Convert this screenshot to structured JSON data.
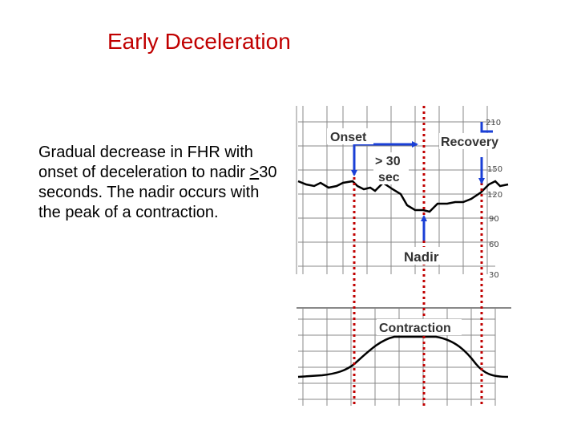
{
  "slide": {
    "title": "Early Deceleration",
    "description": {
      "before": "Gradual decrease in FHR with onset of deceleration to nadir ",
      "symbol": ">",
      "after": "30 seconds. The nadir occurs with the peak of a contraction."
    }
  },
  "strip": {
    "labels": {
      "onset": "Onset",
      "recovery": "Recovery",
      "duration_line1": "> 30",
      "duration_line2": "sec",
      "nadir": "Nadir",
      "contraction": "Contraction"
    },
    "fhr_scale": [
      "210",
      "150",
      "120",
      "90",
      "60",
      "30"
    ],
    "colors": {
      "arrow": "#1a3fd6",
      "marker": "#c00000",
      "trace": "#000000",
      "grid": "#888888"
    }
  }
}
